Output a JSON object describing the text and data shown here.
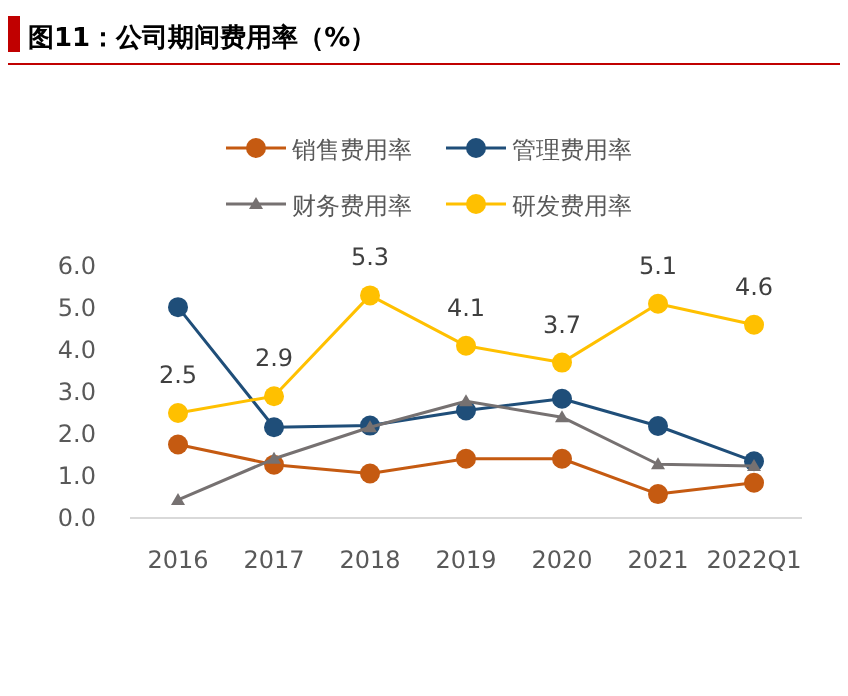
{
  "chart_data": {
    "type": "line",
    "title": "图11：公司期间费用率（%）",
    "categories": [
      "2016",
      "2017",
      "2018",
      "2019",
      "2020",
      "2021",
      "2022Q1"
    ],
    "series": [
      {
        "name": "销售费用率",
        "color": "#c55a11",
        "marker": "circle",
        "values": [
          1.75,
          1.27,
          1.06,
          1.41,
          1.41,
          0.57,
          0.84
        ]
      },
      {
        "name": "管理费用率",
        "color": "#1f4e79",
        "marker": "circle",
        "values": [
          5.02,
          2.16,
          2.2,
          2.56,
          2.84,
          2.19,
          1.35
        ]
      },
      {
        "name": "财务费用率",
        "color": "#767171",
        "marker": "triangle",
        "values": [
          0.43,
          1.41,
          2.16,
          2.78,
          2.4,
          1.28,
          1.24
        ]
      },
      {
        "name": "研发费用率",
        "color": "#ffc000",
        "marker": "circle",
        "values": [
          2.5,
          2.9,
          5.3,
          4.1,
          3.7,
          5.1,
          4.6
        ],
        "value_labels": [
          "2.5",
          "2.9",
          "5.3",
          "4.1",
          "3.7",
          "5.1",
          "4.6"
        ]
      }
    ],
    "ylim": [
      0,
      6
    ],
    "yticks": [
      {
        "value": 0,
        "label": "0.0"
      },
      {
        "value": 1,
        "label": "1.0"
      },
      {
        "value": 2,
        "label": "2.0"
      },
      {
        "value": 3,
        "label": "3.0"
      },
      {
        "value": 4,
        "label": "4.0"
      },
      {
        "value": 5,
        "label": "5.0"
      },
      {
        "value": 6,
        "label": "6.0"
      }
    ],
    "legend": "top"
  }
}
